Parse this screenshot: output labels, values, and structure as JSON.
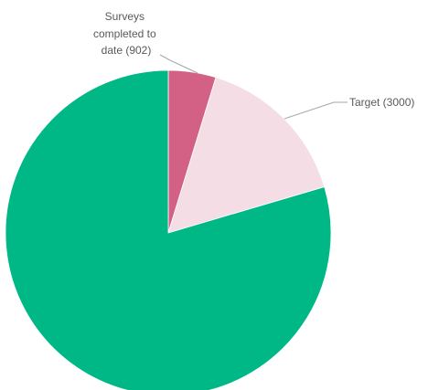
{
  "chart_data": {
    "type": "pie",
    "title": "",
    "slices": [
      {
        "label_lines": [
          "Surveys",
          "completed to",
          "date (902)"
        ],
        "value": 902,
        "color": "#d36185"
      },
      {
        "label_lines": [
          "Target (3000)"
        ],
        "value": 3000,
        "color": "#f4dde5"
      },
      {
        "label_lines": [],
        "value": 15200,
        "color": "#00b886"
      }
    ],
    "legend": "none"
  }
}
